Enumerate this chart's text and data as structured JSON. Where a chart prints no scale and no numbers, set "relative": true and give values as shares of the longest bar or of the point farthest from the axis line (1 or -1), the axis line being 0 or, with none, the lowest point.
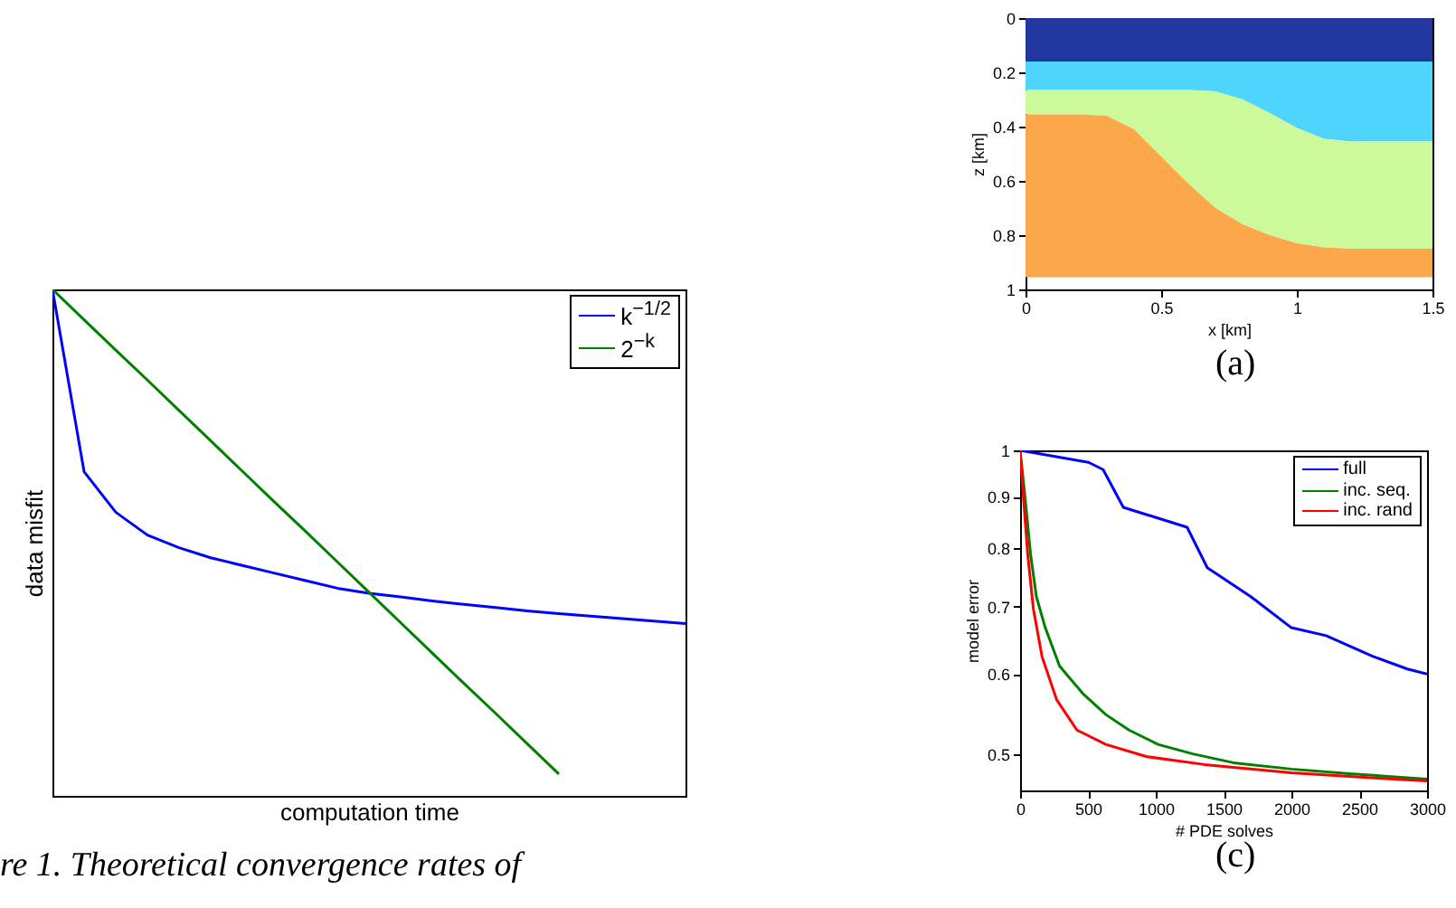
{
  "chart_data": [
    {
      "type": "line",
      "relative": true,
      "xlabel": "computation time",
      "ylabel": "data misfit",
      "legend": "top right",
      "annotations": [
        "re 1.  Theoretical convergence rates of"
      ],
      "categories": [
        null,
        null,
        null,
        null,
        null,
        null,
        null,
        null,
        null,
        null,
        null,
        null,
        null,
        null,
        null,
        null,
        null,
        null,
        null,
        null,
        null
      ],
      "series": [
        {
          "name": "k$^{−1/2}$",
          "color": "#0000ff",
          "values": [
            1,
            0.64,
            0.56,
            0.515,
            0.49,
            0.47,
            0.455,
            0.44,
            0.425,
            0.41,
            0.4,
            0.393,
            0.385,
            0.378,
            0.372,
            0.365,
            0.36,
            0.355,
            0.35,
            0.345,
            0.34
          ]
        },
        {
          "name": "2$^{−k}$",
          "color": "#008000",
          "values": [
            1,
            0.94,
            0.88,
            0.821,
            0.761,
            0.701,
            0.641,
            0.581,
            0.522,
            0.462,
            0.402,
            0.342,
            0.282,
            0.222,
            0.163,
            0.103,
            0.043,
            null,
            null,
            null,
            null
          ]
        }
      ]
    },
    {
      "type": "area",
      "stacked": true,
      "xlabel": "x [km]",
      "ylabel": "z [km]",
      "annotations": [
        "(a)"
      ],
      "x": [
        0,
        0.1,
        0.2,
        0.3,
        0.4,
        0.5,
        0.6,
        0.7,
        0.8,
        0.9,
        1,
        1.1,
        1.2,
        1.3,
        1.4,
        1.5
      ],
      "xlim": [
        0,
        1.5
      ],
      "xticks": [
        0,
        0.5,
        1,
        1.5
      ],
      "ylim": [
        1,
        0
      ],
      "yticks": [
        0,
        0.2,
        0.4,
        0.6,
        0.8,
        1
      ],
      "series": [
        {
          "color": "#2236a0",
          "values": [
            0.16,
            0.16,
            0.16,
            0.16,
            0.16,
            0.16,
            0.16,
            0.16,
            0.16,
            0.16,
            0.16,
            0.16,
            0.16,
            0.16,
            0.16,
            0.16
          ]
        },
        {
          "color": "#4fd4fc",
          "values": [
            0.105,
            0.105,
            0.105,
            0.105,
            0.105,
            0.105,
            0.105,
            0.11,
            0.14,
            0.19,
            0.245,
            0.285,
            0.295,
            0.295,
            0.295,
            0.295
          ]
        },
        {
          "color": "#ccfa9a",
          "values": [
            0.09,
            0.09,
            0.09,
            0.095,
            0.145,
            0.245,
            0.345,
            0.43,
            0.46,
            0.45,
            0.425,
            0.4,
            0.395,
            0.395,
            0.395,
            0.395
          ]
        },
        {
          "color": "#fca84a",
          "values": [
            0.6,
            0.6,
            0.6,
            0.595,
            0.545,
            0.445,
            0.345,
            0.255,
            0.195,
            0.155,
            0.125,
            0.11,
            0.105,
            0.105,
            0.105,
            0.105
          ]
        }
      ]
    },
    {
      "type": "line",
      "log": true,
      "xlabel": "# PDE solves",
      "ylabel": "model error",
      "legend": "top right",
      "annotations": [
        "(c)"
      ],
      "xlim": [
        0,
        3000
      ],
      "xticks": [
        0,
        500,
        1000,
        1500,
        2000,
        2500,
        3000
      ],
      "ylim": [
        0.46,
        1
      ],
      "yticks": [
        0.5,
        0.6,
        0.7,
        0.8,
        0.9,
        1
      ],
      "series": [
        {
          "name": "full",
          "color": "#0000ff",
          "x": [
            0,
            505,
            612,
            761,
            1231,
            1380,
            1701,
            2000,
            2256,
            2598,
            2855,
            3000
          ],
          "values": [
            1,
            0.973,
            0.957,
            0.878,
            0.839,
            0.765,
            0.716,
            0.667,
            0.655,
            0.625,
            0.607,
            0.6
          ]
        },
        {
          "name": "inc. seq.",
          "color": "#008000",
          "x": [
            0,
            34,
            77,
            120,
            184,
            291,
            462,
            632,
            803,
            1017,
            1274,
            1573,
            2000,
            2427,
            3000
          ],
          "values": [
            1,
            0.905,
            0.789,
            0.716,
            0.668,
            0.611,
            0.574,
            0.547,
            0.528,
            0.511,
            0.5,
            0.49,
            0.483,
            0.478,
            0.472
          ]
        },
        {
          "name": "inc. rand",
          "color": "#ff0000",
          "x": [
            0,
            26,
            56,
            98,
            162,
            269,
            419,
            632,
            930,
            1359,
            2000,
            2641,
            3000
          ],
          "values": [
            1,
            0.893,
            0.789,
            0.696,
            0.624,
            0.566,
            0.528,
            0.511,
            0.497,
            0.488,
            0.479,
            0.473,
            0.47
          ]
        }
      ]
    }
  ]
}
